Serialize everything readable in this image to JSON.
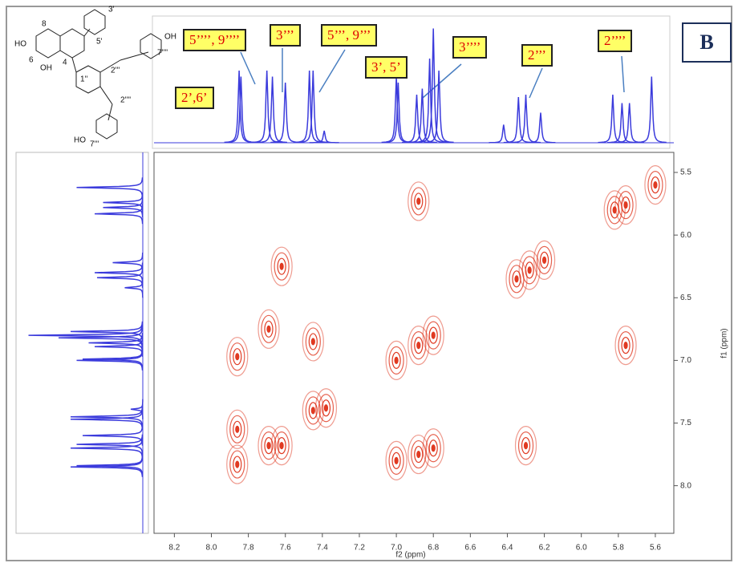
{
  "panel_label": "B",
  "structure": {
    "labels": [
      "HO",
      "8",
      "6",
      "OH",
      "4",
      "3'",
      "5'",
      "1''",
      "2'''",
      "OH",
      "7''''",
      "2''''",
      "HO",
      "7'''"
    ]
  },
  "chart_data": {
    "type": "nmr2d",
    "xlabel": "f2 (ppm)",
    "ylabel": "f1 (ppm)",
    "annotations": [
      "5’’’’, 9’’’’",
      "3’’’",
      "5’’’, 9’’’",
      "3’, 5’",
      "3’’’’",
      "2’’’",
      "2’’’’",
      "2’,6’"
    ],
    "xlim": [
      8.31,
      5.5
    ],
    "ylim": [
      5.34,
      8.38
    ],
    "xticks": [
      8.2,
      {
        "value": 8,
        "label": "8.0"
      },
      7.8,
      7.6,
      7.4,
      7.2,
      {
        "value": 7,
        "label": "7.0"
      },
      6.8,
      6.6,
      6.4,
      6.2,
      {
        "value": 6,
        "label": "6.0"
      },
      5.8,
      5.6
    ],
    "yticks": [
      5.5,
      {
        "value": 6,
        "label": "6.0"
      },
      6.5,
      {
        "value": 7,
        "label": "7.0"
      },
      7.5,
      {
        "value": 8,
        "label": "8.0"
      }
    ],
    "color": "#e03a22",
    "spectrum_color": "#3b3bdc",
    "peaks": {
      "x": [
        7.86,
        7.86,
        7.86,
        7.69,
        7.69,
        7.62,
        7.62,
        7.45,
        7.45,
        7.38,
        7.0,
        7.0,
        6.88,
        6.88,
        6.88,
        6.8,
        6.8,
        6.35,
        6.28,
        6.2,
        6.3,
        5.82,
        5.76,
        5.76,
        5.6
      ],
      "y": [
        7.83,
        6.97,
        7.55,
        7.68,
        6.75,
        7.68,
        6.25,
        7.4,
        6.85,
        7.38,
        7.0,
        7.8,
        6.88,
        5.73,
        7.75,
        6.8,
        7.7,
        6.35,
        6.28,
        6.2,
        7.68,
        5.8,
        5.76,
        6.88,
        5.6
      ]
    },
    "spectrum": {
      "shifts": [
        7.85,
        7.84,
        7.7,
        7.67,
        7.6,
        7.47,
        7.45,
        7.39,
        7.0,
        6.99,
        6.89,
        6.86,
        6.82,
        6.8,
        6.77,
        6.42,
        6.34,
        6.3,
        6.22,
        5.83,
        5.78,
        5.74,
        5.62
      ],
      "intensities": [
        0.6,
        0.55,
        0.6,
        0.55,
        0.5,
        0.6,
        0.6,
        0.1,
        0.55,
        0.5,
        0.4,
        0.45,
        0.7,
        0.95,
        0.6,
        0.15,
        0.38,
        0.4,
        0.25,
        0.4,
        0.33,
        0.33,
        0.55
      ]
    }
  }
}
